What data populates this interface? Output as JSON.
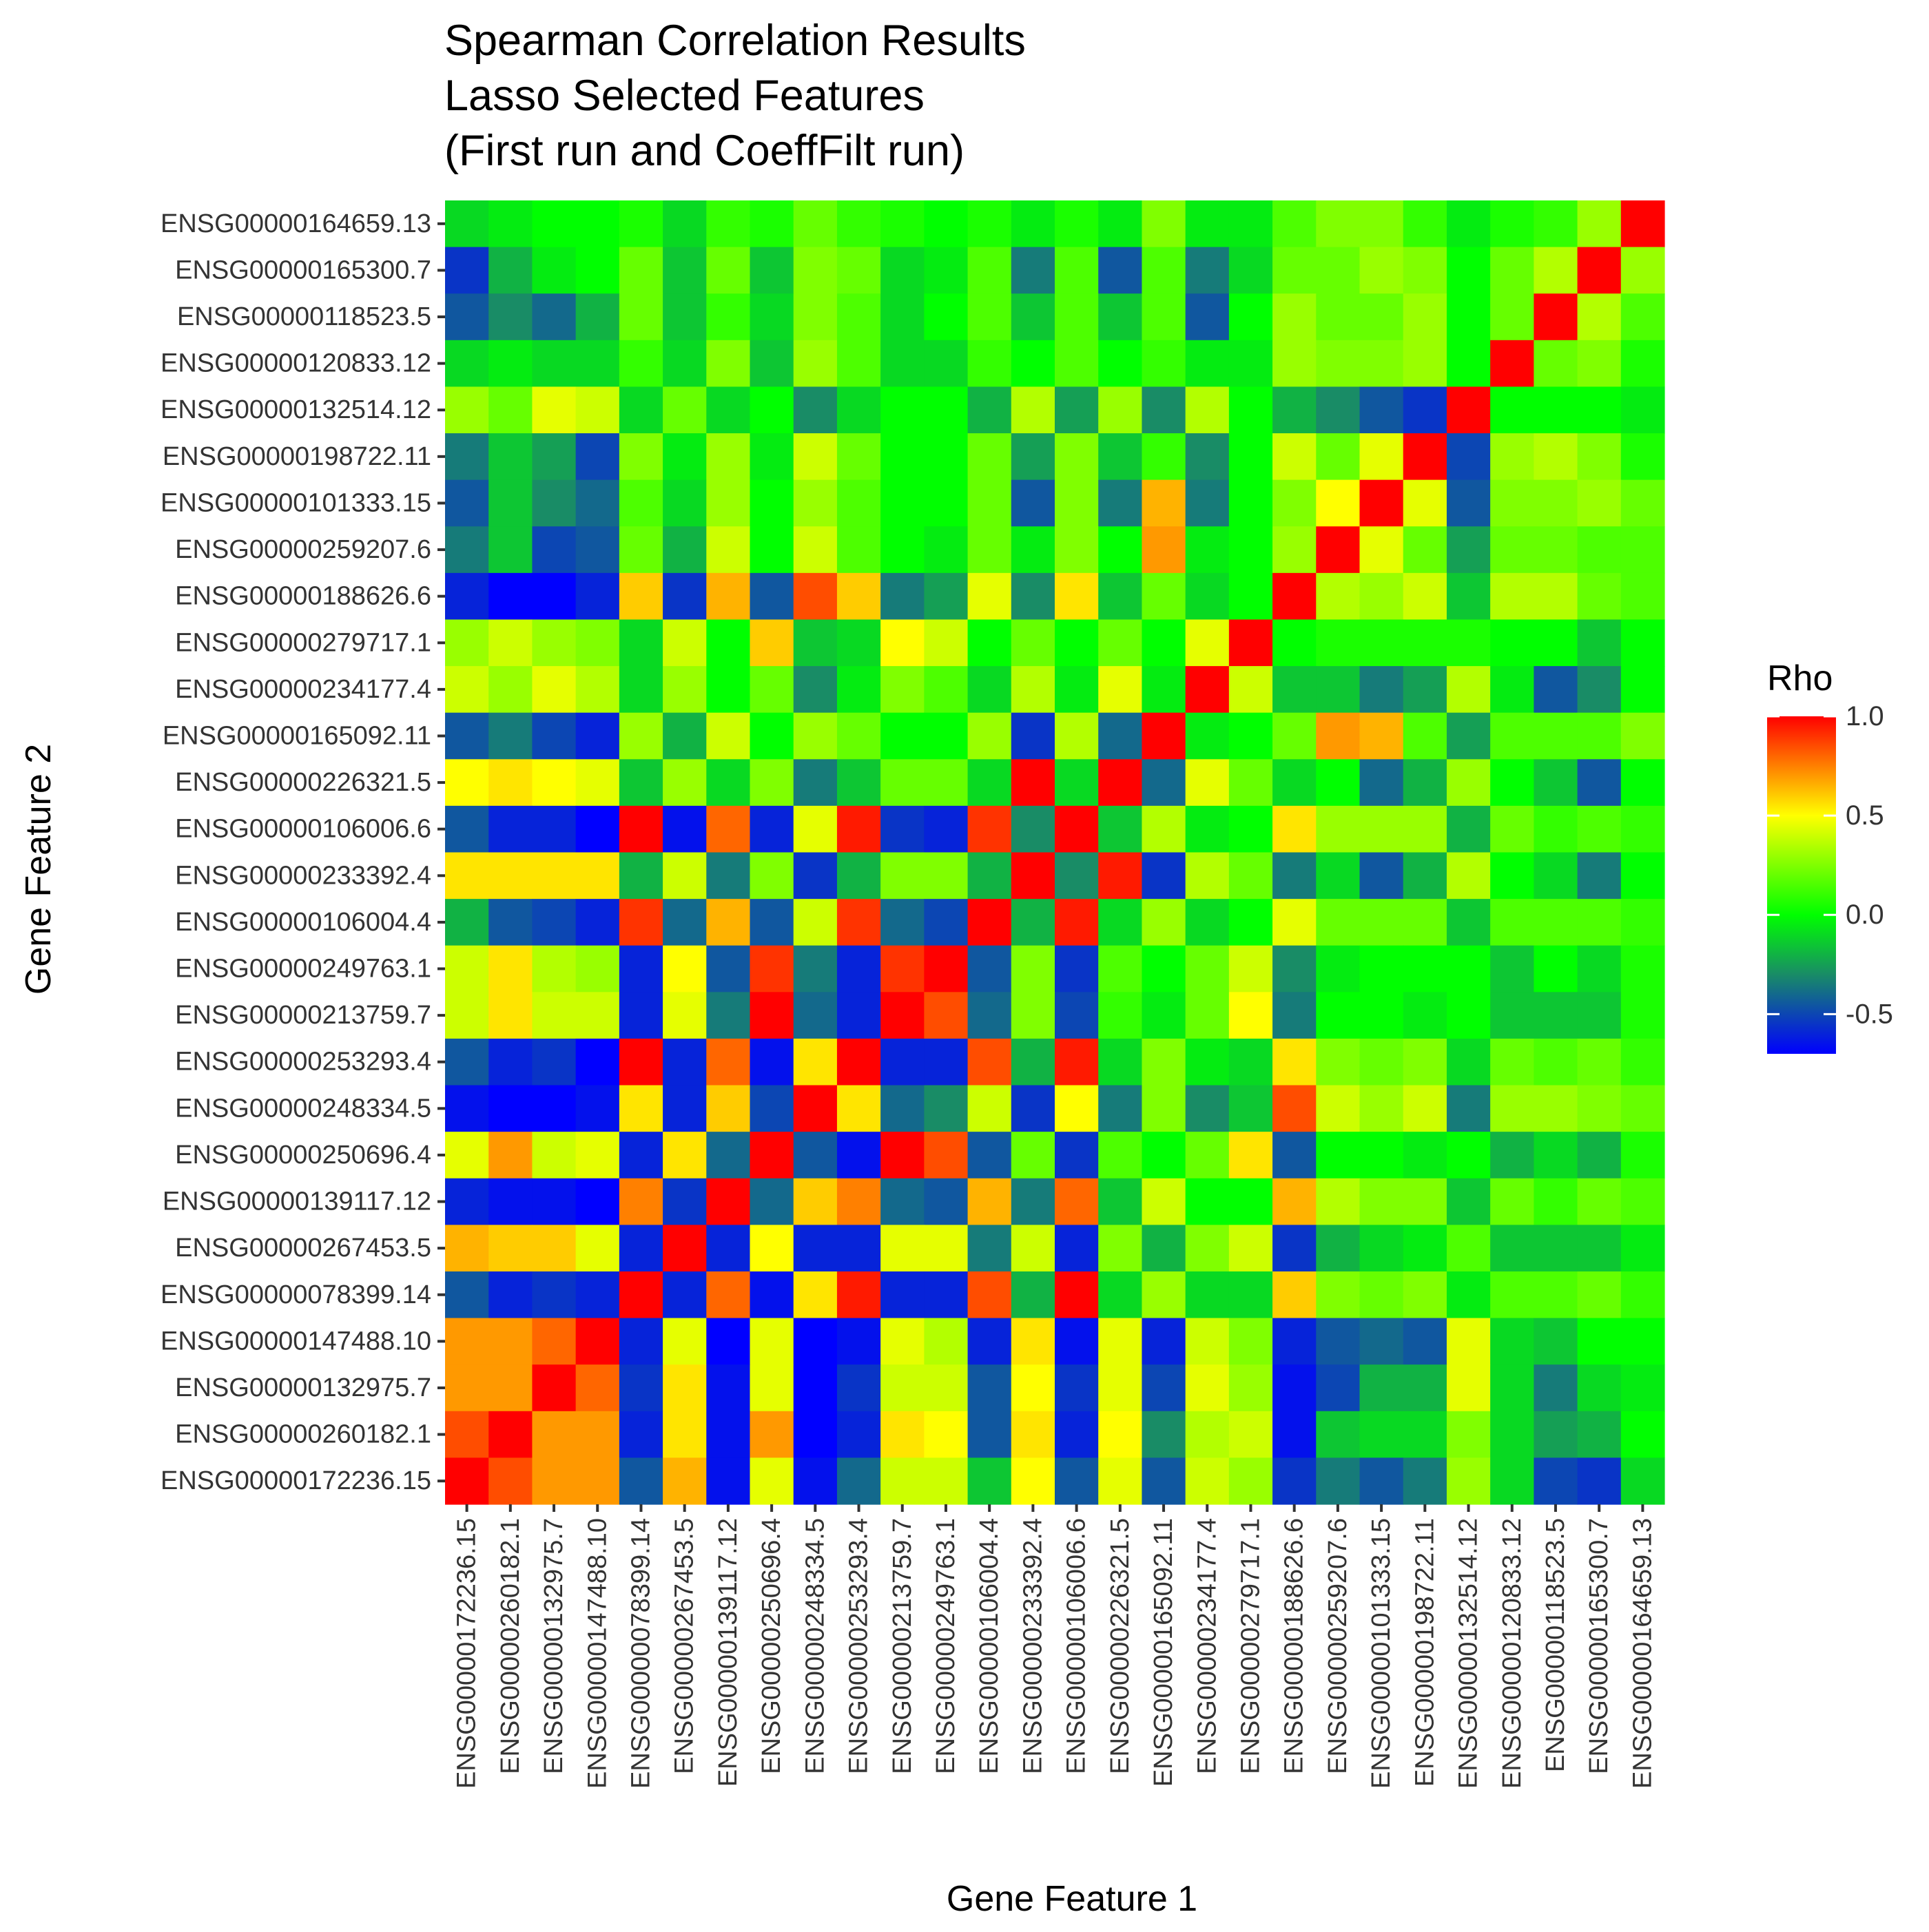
{
  "chart_data": {
    "type": "heatmap",
    "title_lines": [
      "Spearman Correlation Results",
      "Lasso Selected Features",
      "(First run and CoeffFilt run)"
    ],
    "xlabel": "Gene Feature 1",
    "ylabel": "Gene Feature 2",
    "legend_title": "Rho",
    "legend_ticks": [
      "1.0",
      "0.5",
      "0.0",
      "-0.5"
    ],
    "legend_tick_values": [
      1.0,
      0.5,
      0.0,
      -0.5
    ],
    "value_range": [
      -0.7,
      1.0
    ],
    "colorscale": [
      {
        "value": -0.7,
        "color": "#0000ff"
      },
      {
        "value": -0.3,
        "color": "#198c66"
      },
      {
        "value": 0.0,
        "color": "#00ff00"
      },
      {
        "value": 0.5,
        "color": "#ffff00"
      },
      {
        "value": 1.0,
        "color": "#ff0000"
      }
    ],
    "panel_background": "#ebebeb",
    "genes": [
      "ENSG00000172236.15",
      "ENSG00000260182.1",
      "ENSG00000132975.7",
      "ENSG00000147488.10",
      "ENSG00000078399.14",
      "ENSG00000267453.5",
      "ENSG00000139117.12",
      "ENSG00000250696.4",
      "ENSG00000248334.5",
      "ENSG00000253293.4",
      "ENSG00000213759.7",
      "ENSG00000249763.1",
      "ENSG00000106004.4",
      "ENSG00000233392.4",
      "ENSG00000106006.6",
      "ENSG00000226321.5",
      "ENSG00000165092.11",
      "ENSG00000234177.4",
      "ENSG00000279717.1",
      "ENSG00000188626.6",
      "ENSG00000259207.6",
      "ENSG00000101333.15",
      "ENSG00000198722.11",
      "ENSG00000132514.12",
      "ENSG00000120833.12",
      "ENSG00000118523.5",
      "ENSG00000165300.7",
      "ENSG00000164659.13"
    ],
    "matrix_rows_top_to_bottom": [
      {
        "y": "ENSG00000164659.13",
        "values": [
          -0.1,
          -0.05,
          0.0,
          0.0,
          0.05,
          -0.1,
          0.1,
          0.05,
          0.2,
          0.1,
          0.05,
          0.0,
          0.05,
          -0.05,
          0.05,
          -0.05,
          0.25,
          -0.05,
          -0.05,
          0.15,
          0.25,
          0.25,
          0.1,
          -0.05,
          0.05,
          0.1,
          0.3,
          1.0
        ]
      },
      {
        "y": "ENSG00000165300.7",
        "values": [
          -0.55,
          -0.2,
          -0.05,
          0.0,
          0.2,
          -0.15,
          0.2,
          -0.15,
          0.25,
          0.2,
          -0.1,
          -0.05,
          0.15,
          -0.35,
          0.15,
          -0.45,
          0.15,
          -0.35,
          -0.1,
          0.2,
          0.2,
          0.3,
          0.25,
          0.0,
          0.2,
          0.35,
          1.0,
          0.3
        ]
      },
      {
        "y": "ENSG00000118523.5",
        "values": [
          -0.45,
          -0.3,
          -0.4,
          -0.2,
          0.2,
          -0.15,
          0.1,
          -0.1,
          0.25,
          0.15,
          -0.1,
          0.0,
          0.15,
          -0.15,
          0.15,
          -0.15,
          0.15,
          -0.45,
          0.0,
          0.3,
          0.2,
          0.2,
          0.3,
          0.0,
          0.2,
          1.0,
          0.35,
          0.15
        ]
      },
      {
        "y": "ENSG00000120833.12",
        "values": [
          -0.1,
          -0.05,
          -0.1,
          -0.1,
          0.1,
          -0.1,
          0.25,
          -0.15,
          0.3,
          0.15,
          -0.1,
          -0.1,
          0.1,
          0.0,
          0.15,
          0.0,
          0.1,
          -0.05,
          -0.05,
          0.3,
          0.25,
          0.25,
          0.3,
          0.0,
          1.0,
          0.2,
          0.25,
          0.05
        ]
      },
      {
        "y": "ENSG00000132514.12",
        "values": [
          0.3,
          0.2,
          0.45,
          0.4,
          -0.1,
          0.2,
          -0.1,
          0.0,
          -0.3,
          -0.1,
          0.0,
          0.0,
          -0.2,
          0.35,
          -0.25,
          0.3,
          -0.3,
          0.35,
          0.0,
          -0.2,
          -0.3,
          -0.45,
          -0.55,
          1.0,
          0.0,
          0.0,
          0.0,
          -0.05
        ]
      },
      {
        "y": "ENSG00000198722.11",
        "values": [
          -0.35,
          -0.15,
          -0.25,
          -0.5,
          0.25,
          -0.05,
          0.3,
          -0.05,
          0.4,
          0.2,
          0.0,
          0.0,
          0.2,
          -0.25,
          0.25,
          -0.15,
          0.1,
          -0.3,
          0.0,
          0.4,
          0.2,
          0.45,
          1.0,
          -0.5,
          0.3,
          0.35,
          0.25,
          0.05
        ]
      },
      {
        "y": "ENSG00000101333.15",
        "values": [
          -0.45,
          -0.15,
          -0.3,
          -0.4,
          0.15,
          -0.1,
          0.3,
          0.0,
          0.3,
          0.15,
          0.0,
          0.0,
          0.2,
          -0.45,
          0.25,
          -0.35,
          0.65,
          -0.35,
          0.0,
          0.25,
          0.5,
          1.0,
          0.45,
          -0.45,
          0.25,
          0.25,
          0.3,
          0.2
        ]
      },
      {
        "y": "ENSG00000259207.6",
        "values": [
          -0.35,
          -0.15,
          -0.5,
          -0.45,
          0.2,
          -0.2,
          0.4,
          0.0,
          0.4,
          0.15,
          0.0,
          -0.05,
          0.2,
          -0.05,
          0.25,
          0.0,
          0.7,
          -0.05,
          0.0,
          0.3,
          1.0,
          0.45,
          0.2,
          -0.25,
          0.2,
          0.2,
          0.15,
          0.15
        ]
      },
      {
        "y": "ENSG00000188626.6",
        "values": [
          -0.6,
          -0.7,
          -0.7,
          -0.6,
          0.6,
          -0.55,
          0.65,
          -0.45,
          0.85,
          0.6,
          -0.35,
          -0.25,
          0.45,
          -0.3,
          0.55,
          -0.15,
          0.2,
          -0.1,
          0.0,
          1.0,
          0.35,
          0.3,
          0.4,
          -0.15,
          0.35,
          0.35,
          0.2,
          0.15
        ]
      },
      {
        "y": "ENSG00000279717.1",
        "values": [
          0.3,
          0.4,
          0.3,
          0.25,
          -0.1,
          0.4,
          0.0,
          0.6,
          -0.15,
          -0.1,
          0.5,
          0.4,
          0.0,
          0.2,
          0.0,
          0.2,
          0.0,
          0.45,
          1.0,
          0.0,
          0.05,
          0.05,
          0.05,
          0.05,
          0.0,
          0.0,
          -0.15,
          0.0
        ]
      },
      {
        "y": "ENSG00000234177.4",
        "values": [
          0.4,
          0.3,
          0.45,
          0.35,
          -0.1,
          0.3,
          0.0,
          0.2,
          -0.3,
          -0.05,
          0.25,
          0.15,
          -0.1,
          0.35,
          -0.05,
          0.45,
          -0.05,
          1.0,
          0.4,
          -0.15,
          -0.15,
          -0.35,
          -0.25,
          0.35,
          -0.05,
          -0.45,
          -0.3,
          0.0
        ]
      },
      {
        "y": "ENSG00000165092.11",
        "values": [
          -0.45,
          -0.35,
          -0.5,
          -0.6,
          0.3,
          -0.2,
          0.4,
          0.0,
          0.3,
          0.2,
          0.0,
          0.0,
          0.3,
          -0.55,
          0.35,
          -0.4,
          1.0,
          -0.05,
          0.0,
          0.2,
          0.7,
          0.65,
          0.15,
          -0.25,
          0.15,
          0.15,
          0.15,
          0.25
        ]
      },
      {
        "y": "ENSG00000226321.5",
        "values": [
          0.5,
          0.55,
          0.5,
          0.45,
          -0.15,
          0.3,
          -0.1,
          0.25,
          -0.35,
          -0.15,
          0.2,
          0.2,
          -0.1,
          1.0,
          -0.1,
          1.0,
          -0.4,
          0.45,
          0.2,
          -0.1,
          0.0,
          -0.4,
          -0.2,
          0.3,
          0.0,
          -0.15,
          -0.45,
          0.0
        ]
      },
      {
        "y": "ENSG00000106006.6",
        "values": [
          -0.45,
          -0.6,
          -0.6,
          -0.7,
          1.0,
          -0.65,
          0.8,
          -0.6,
          0.45,
          0.95,
          -0.55,
          -0.6,
          0.9,
          -0.3,
          1.0,
          -0.15,
          0.35,
          -0.05,
          0.0,
          0.55,
          0.3,
          0.3,
          0.3,
          -0.2,
          0.2,
          0.1,
          0.15,
          0.1
        ]
      },
      {
        "y": "ENSG00000233392.4",
        "values": [
          0.55,
          0.55,
          0.55,
          0.55,
          -0.2,
          0.4,
          -0.35,
          0.25,
          -0.55,
          -0.2,
          0.25,
          0.25,
          -0.2,
          1.0,
          -0.3,
          0.95,
          -0.55,
          0.35,
          0.2,
          -0.35,
          -0.1,
          -0.45,
          -0.2,
          0.35,
          0.0,
          -0.1,
          -0.35,
          0.0
        ]
      },
      {
        "y": "ENSG00000106004.4",
        "values": [
          -0.2,
          -0.45,
          -0.5,
          -0.6,
          0.9,
          -0.4,
          0.65,
          -0.45,
          0.4,
          0.9,
          -0.4,
          -0.5,
          1.0,
          -0.2,
          0.95,
          -0.1,
          0.3,
          -0.1,
          0.0,
          0.45,
          0.2,
          0.2,
          0.2,
          -0.15,
          0.15,
          0.15,
          0.15,
          0.1
        ]
      },
      {
        "y": "ENSG00000249763.1",
        "values": [
          0.4,
          0.55,
          0.35,
          0.3,
          -0.6,
          0.5,
          -0.45,
          0.9,
          -0.35,
          -0.6,
          0.9,
          1.0,
          -0.45,
          0.25,
          -0.55,
          0.15,
          0.0,
          0.2,
          0.4,
          -0.3,
          -0.05,
          0.0,
          0.0,
          0.0,
          -0.15,
          0.0,
          -0.1,
          0.05
        ]
      },
      {
        "y": "ENSG00000213759.7",
        "values": [
          0.4,
          0.55,
          0.4,
          0.4,
          -0.6,
          0.45,
          -0.35,
          1.0,
          -0.4,
          -0.6,
          1.0,
          0.85,
          -0.4,
          0.25,
          -0.5,
          0.1,
          -0.05,
          0.2,
          0.5,
          -0.35,
          0.0,
          0.0,
          -0.05,
          0.0,
          -0.15,
          -0.15,
          -0.15,
          0.05
        ]
      },
      {
        "y": "ENSG00000253293.4",
        "values": [
          -0.45,
          -0.6,
          -0.55,
          -0.7,
          1.0,
          -0.6,
          0.8,
          -0.65,
          0.55,
          1.0,
          -0.6,
          -0.6,
          0.85,
          -0.2,
          0.95,
          -0.1,
          0.25,
          -0.05,
          -0.1,
          0.55,
          0.25,
          0.2,
          0.25,
          -0.1,
          0.2,
          0.15,
          0.2,
          0.1
        ]
      },
      {
        "y": "ENSG00000248334.5",
        "values": [
          -0.65,
          -0.7,
          -0.7,
          -0.65,
          0.55,
          -0.6,
          0.6,
          -0.5,
          1.0,
          0.55,
          -0.4,
          -0.3,
          0.4,
          -0.55,
          0.5,
          -0.35,
          0.25,
          -0.3,
          -0.15,
          0.85,
          0.4,
          0.3,
          0.4,
          -0.35,
          0.3,
          0.3,
          0.25,
          0.2
        ]
      },
      {
        "y": "ENSG00000250696.4",
        "values": [
          0.45,
          0.7,
          0.4,
          0.45,
          -0.6,
          0.55,
          -0.4,
          1.0,
          -0.45,
          -0.65,
          1.0,
          0.85,
          -0.45,
          0.2,
          -0.55,
          0.15,
          0.0,
          0.2,
          0.55,
          -0.45,
          0.0,
          0.0,
          -0.05,
          0.0,
          -0.2,
          -0.1,
          -0.2,
          0.05
        ]
      },
      {
        "y": "ENSG00000139117.12",
        "values": [
          -0.6,
          -0.65,
          -0.65,
          -0.7,
          0.75,
          -0.55,
          1.0,
          -0.4,
          0.6,
          0.75,
          -0.4,
          -0.45,
          0.65,
          -0.35,
          0.8,
          -0.15,
          0.4,
          0.0,
          0.0,
          0.65,
          0.35,
          0.25,
          0.25,
          -0.15,
          0.2,
          0.1,
          0.2,
          0.15
        ]
      },
      {
        "y": "ENSG00000267453.5",
        "values": [
          0.65,
          0.6,
          0.6,
          0.45,
          -0.6,
          1.0,
          -0.6,
          0.5,
          -0.6,
          -0.6,
          0.45,
          0.45,
          -0.35,
          0.4,
          -0.6,
          0.25,
          -0.2,
          0.25,
          0.4,
          -0.55,
          -0.2,
          -0.1,
          -0.05,
          0.15,
          -0.15,
          -0.15,
          -0.15,
          -0.05
        ]
      },
      {
        "y": "ENSG00000078399.14",
        "values": [
          -0.45,
          -0.6,
          -0.55,
          -0.6,
          1.0,
          -0.6,
          0.8,
          -0.65,
          0.55,
          0.95,
          -0.6,
          -0.6,
          0.85,
          -0.2,
          1.0,
          -0.1,
          0.3,
          -0.1,
          -0.1,
          0.6,
          0.25,
          0.2,
          0.25,
          -0.05,
          0.15,
          0.15,
          0.2,
          0.1
        ]
      },
      {
        "y": "ENSG00000147488.10",
        "values": [
          0.7,
          0.7,
          0.8,
          1.0,
          -0.6,
          0.45,
          -0.7,
          0.45,
          -0.7,
          -0.65,
          0.45,
          0.35,
          -0.6,
          0.55,
          -0.65,
          0.45,
          -0.6,
          0.4,
          0.25,
          -0.6,
          -0.45,
          -0.4,
          -0.45,
          0.45,
          -0.1,
          -0.15,
          0.0,
          0.0
        ]
      },
      {
        "y": "ENSG00000132975.7",
        "values": [
          0.7,
          0.7,
          1.0,
          0.8,
          -0.55,
          0.55,
          -0.65,
          0.45,
          -0.7,
          -0.55,
          0.4,
          0.4,
          -0.45,
          0.5,
          -0.55,
          0.45,
          -0.5,
          0.45,
          0.3,
          -0.65,
          -0.5,
          -0.2,
          -0.2,
          0.45,
          -0.1,
          -0.35,
          -0.1,
          -0.05
        ]
      },
      {
        "y": "ENSG00000260182.1",
        "values": [
          0.85,
          1.0,
          0.7,
          0.7,
          -0.6,
          0.55,
          -0.65,
          0.7,
          -0.7,
          -0.6,
          0.55,
          0.5,
          -0.45,
          0.55,
          -0.6,
          0.5,
          -0.3,
          0.35,
          0.4,
          -0.65,
          -0.15,
          -0.1,
          -0.1,
          0.25,
          -0.1,
          -0.25,
          -0.2,
          0.0
        ]
      },
      {
        "y": "ENSG00000172236.15",
        "values": [
          1.0,
          0.85,
          0.7,
          0.7,
          -0.45,
          0.65,
          -0.65,
          0.45,
          -0.65,
          -0.4,
          0.4,
          0.4,
          -0.15,
          0.5,
          -0.45,
          0.45,
          -0.45,
          0.4,
          0.3,
          -0.55,
          -0.35,
          -0.45,
          -0.35,
          0.3,
          -0.1,
          -0.5,
          -0.55,
          -0.1
        ]
      }
    ]
  }
}
